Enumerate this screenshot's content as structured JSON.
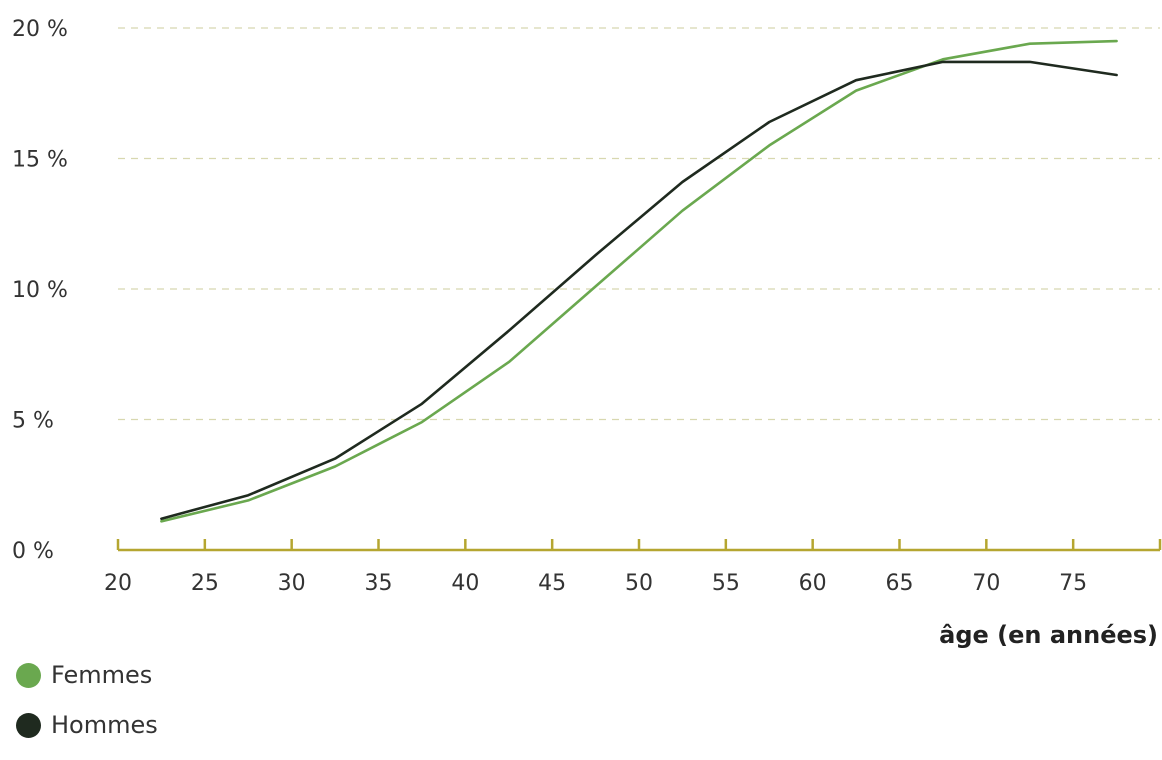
{
  "chart_data": {
    "type": "line",
    "title": "",
    "xlabel": "âge (en années)",
    "ylabel": "",
    "xlim": [
      20,
      80
    ],
    "ylim": [
      0,
      20
    ],
    "x_ticks": [
      "20",
      "25",
      "30",
      "35",
      "40",
      "45",
      "50",
      "55",
      "60",
      "65",
      "70",
      "75"
    ],
    "y_ticks": [
      "0 %",
      "5 %",
      "10 %",
      "15 %",
      "20 %"
    ],
    "grid": "horizontal dashed",
    "legend_placement": "bottom-left",
    "series": [
      {
        "name": "Femmes",
        "color": "#6aa84f",
        "x": [
          22.5,
          27.5,
          32.5,
          37.5,
          42.5,
          47.5,
          52.5,
          57.5,
          62.5,
          67.5,
          72.5,
          77.5
        ],
        "y": [
          1.1,
          1.9,
          3.2,
          4.9,
          7.2,
          10.1,
          13.0,
          15.5,
          17.6,
          18.8,
          19.4,
          19.5
        ]
      },
      {
        "name": "Hommes",
        "color": "#1f2a1f",
        "x": [
          22.5,
          27.5,
          32.5,
          37.5,
          42.5,
          47.5,
          52.5,
          57.5,
          62.5,
          67.5,
          72.5,
          77.5
        ],
        "y": [
          1.2,
          2.1,
          3.5,
          5.6,
          8.4,
          11.3,
          14.1,
          16.4,
          18.0,
          18.7,
          18.7,
          18.2
        ]
      }
    ]
  },
  "colors": {
    "axis": "#b5a631",
    "grid": "#d8d8b0"
  }
}
